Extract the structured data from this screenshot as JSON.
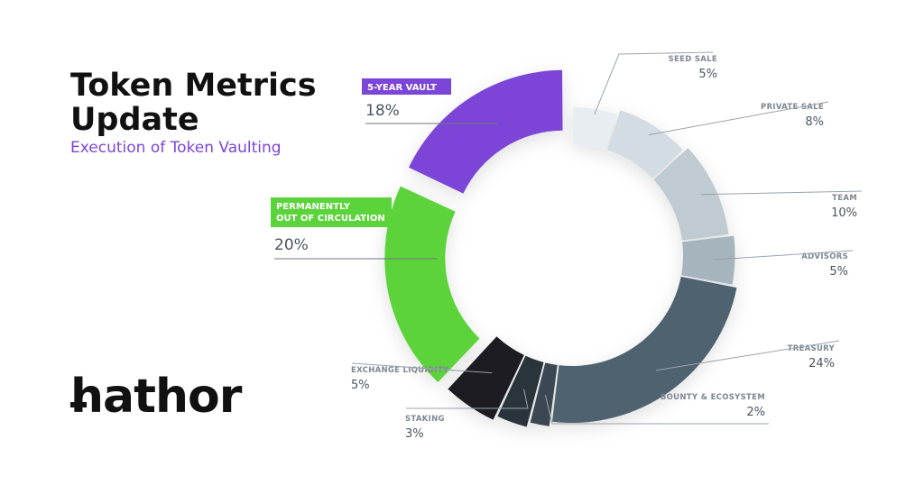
{
  "header": {
    "title_line1": "Token Metrics",
    "title_line2": "Update",
    "subtitle": "Execution of Token Vaulting"
  },
  "brand": {
    "logo_text": "hathor"
  },
  "colors": {
    "accent_purple": "#7b45d8",
    "accent_green": "#5bd33a"
  },
  "chart_data": {
    "type": "pie",
    "donut": true,
    "categories": [
      "SEED SALE",
      "PRIVATE SALE",
      "TEAM",
      "ADVISORS",
      "TREASURY",
      "BOUNTY & ECOSYSTEM",
      "STAKING",
      "EXCHANGE LIQUIDITY",
      "PERMANENTLY OUT OF CIRCULATION",
      "5-YEAR VAULT"
    ],
    "values": [
      5,
      8,
      10,
      5,
      24,
      2,
      3,
      5,
      20,
      18
    ],
    "value_labels": [
      "5%",
      "8%",
      "10%",
      "5%",
      "24%",
      "2%",
      "3%",
      "5%",
      "20%",
      "18%"
    ],
    "colors": [
      "#e8edf1",
      "#d3dce2",
      "#c0cad1",
      "#a6b4bd",
      "#4f6270",
      "#3a4752",
      "#2c343b",
      "#1b1e21",
      "#5bd33a",
      "#7b45d8"
    ],
    "highlighted": [
      "PERMANENTLY OUT OF CIRCULATION",
      "5-YEAR VAULT"
    ],
    "highlight_tags": [
      "PERMANENTLY",
      "OUT OF CIRCULATION",
      "5-YEAR VAULT"
    ]
  }
}
